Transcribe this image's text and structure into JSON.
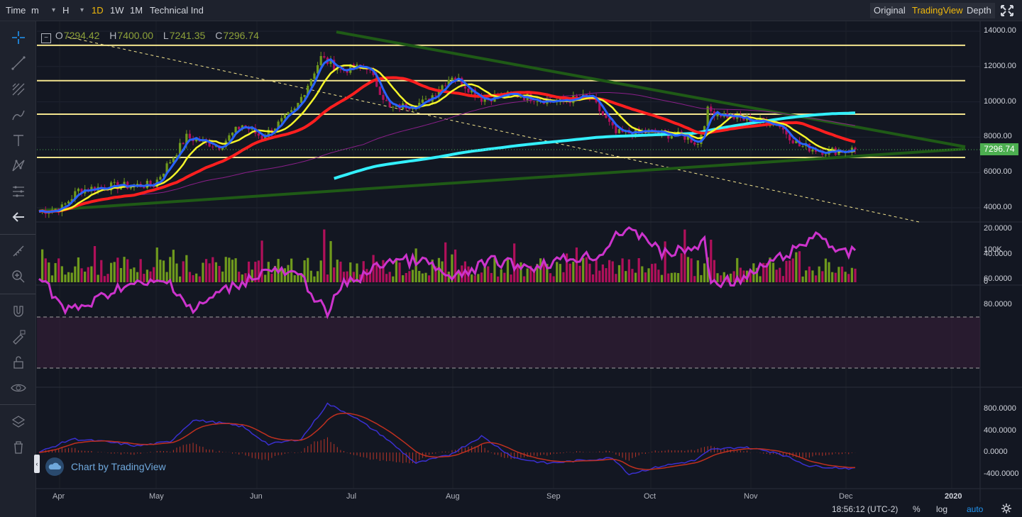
{
  "toolbar": {
    "time_label": "Time",
    "minute_select": "m",
    "hour_select": "H",
    "intervals": [
      "1D",
      "1W",
      "1M"
    ],
    "active_interval": "1D",
    "indicator_label": "Technical Ind",
    "views": [
      "Original",
      "TradingView",
      "Depth"
    ],
    "active_view": "TradingView"
  },
  "ohlc": {
    "o_label": "O",
    "o": "7294.42",
    "h_label": "H",
    "h": "7400.00",
    "l_label": "L",
    "l": "7241.35",
    "c_label": "C",
    "c": "7296.74"
  },
  "price_axis": {
    "ticks": [
      "14000.00",
      "12000.00",
      "10000.00",
      "8000.00",
      "6000.00",
      "4000.00"
    ],
    "current_price": "7296.74",
    "current_price_color": "#4caf50"
  },
  "volume_axis": {
    "ticks": [
      "100K",
      "0"
    ]
  },
  "rsi_axis": {
    "ticks": [
      "80.0000",
      "60.0000",
      "40.0000",
      "20.0000"
    ]
  },
  "macd_axis": {
    "ticks": [
      "800.0000",
      "400.0000",
      "0.0000",
      "-400.0000"
    ]
  },
  "time_axis": {
    "months": [
      "Apr",
      "May",
      "Jun",
      "Jul",
      "Aug",
      "Sep",
      "Oct",
      "Nov",
      "Dec",
      "2020"
    ]
  },
  "watermark": "Chart by TradingView",
  "status": {
    "clock": "18:56:12 (UTC-2)",
    "percent": "%",
    "log": "log",
    "auto": "auto"
  },
  "left_tools": [
    "crosshair-icon",
    "trend-line-icon",
    "fib-icon",
    "brush-icon",
    "text-icon",
    "pattern-icon",
    "measure-icon",
    "back-arrow-icon",
    "ruler-icon",
    "zoom-in-icon",
    "magnet-icon",
    "lock-draw-icon",
    "lock-icon",
    "eye-icon",
    "layers-icon",
    "trash-icon"
  ],
  "colors": {
    "bull": "#6f9a1d",
    "bear": "#b0105a",
    "ma_fast": "#2962ff",
    "ma_mid": "#f5f52a",
    "ma_slow": "#ff1f1f",
    "ma_200": "#33f0ff",
    "rsi": "#cc33cc",
    "trend": "#1f5a16",
    "level": "#f3e48e"
  },
  "chart_data": {
    "type": "candlestick",
    "y_range": [
      3300,
      14500
    ],
    "horizontal_levels": [
      13200,
      11200,
      9300,
      6850
    ],
    "current_price": 7296.74,
    "rsi_levels": [
      70,
      30
    ],
    "rsi_range": [
      15,
      90
    ],
    "macd_range": [
      -500,
      1000
    ]
  }
}
